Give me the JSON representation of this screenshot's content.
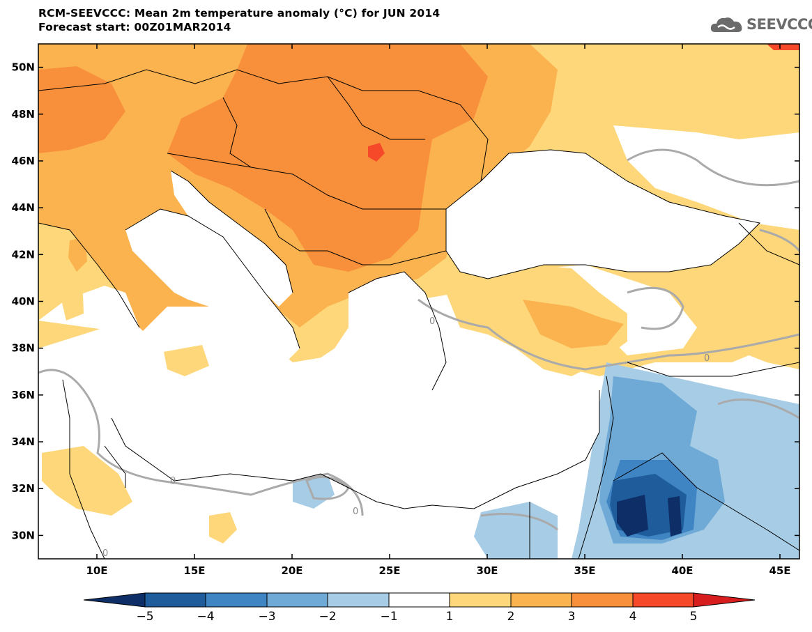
{
  "header": {
    "title": "RCM-SEEVCCC: Mean 2m temperature anomaly (°C) for JUN 2014",
    "forecast": "Forecast start: 00Z01MAR2014"
  },
  "logo": {
    "text": "SEEVCCC",
    "icon": "cloud-icon"
  },
  "map": {
    "lon_range": [
      7,
      46
    ],
    "lat_range": [
      29,
      51
    ],
    "lat_ticks": [
      "50N",
      "48N",
      "46N",
      "44N",
      "42N",
      "40N",
      "38N",
      "36N",
      "34N",
      "32N",
      "30N"
    ],
    "lon_ticks": [
      "10E",
      "15E",
      "20E",
      "25E",
      "30E",
      "35E",
      "40E",
      "45E"
    ],
    "contour_labels": [
      "0",
      "0",
      "0",
      "0",
      "0"
    ]
  },
  "colorbar": {
    "labels": [
      "−5",
      "−4",
      "−3",
      "−2",
      "−1",
      "1",
      "2",
      "3",
      "4",
      "5"
    ],
    "colors": {
      "lt_m5": "#0d2e66",
      "m5_m4": "#1f5c9c",
      "m4_m3": "#3f85c3",
      "m3_m2": "#6fa9d6",
      "m2_m1": "#a7cce6",
      "m1_1": "#ffffff",
      "1_2": "#fdd779",
      "2_3": "#fbb34f",
      "3_4": "#f8903b",
      "4_5": "#f5492a",
      "gt_5": "#d71d1d"
    }
  }
}
